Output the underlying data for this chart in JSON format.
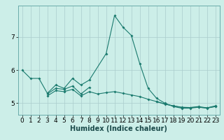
{
  "xlabel": "Humidex (Indice chaleur)",
  "bg_color": "#cceee8",
  "grid_color": "#aacccc",
  "line_color": "#1a7a6e",
  "xlim": [
    -0.5,
    23.5
  ],
  "ylim": [
    4.65,
    7.95
  ],
  "yticks": [
    5,
    6,
    7
  ],
  "xticks": [
    0,
    1,
    2,
    3,
    4,
    5,
    6,
    7,
    8,
    9,
    10,
    11,
    12,
    13,
    14,
    15,
    16,
    17,
    18,
    19,
    20,
    21,
    22,
    23
  ],
  "series": [
    {
      "x": [
        0,
        1,
        2,
        3,
        4,
        5,
        6,
        7,
        8,
        10,
        11,
        12,
        13,
        14,
        15,
        16,
        17,
        18,
        19,
        20,
        21,
        22,
        23
      ],
      "y": [
        6.0,
        5.75,
        5.75,
        5.3,
        5.55,
        5.45,
        5.75,
        5.55,
        5.7,
        6.5,
        7.65,
        7.3,
        7.05,
        6.2,
        5.45,
        5.15,
        5.0,
        4.9,
        4.85,
        4.85,
        4.88,
        4.85,
        4.9
      ]
    },
    {
      "x": [
        3,
        4,
        5,
        6,
        7,
        8
      ],
      "y": [
        5.28,
        5.45,
        5.42,
        5.52,
        5.28,
        5.48
      ]
    },
    {
      "x": [
        3,
        4,
        5,
        6,
        7,
        8,
        9,
        10,
        11,
        12,
        13,
        14,
        15,
        16,
        17,
        18,
        19,
        20,
        21,
        22,
        23
      ],
      "y": [
        5.22,
        5.38,
        5.35,
        5.42,
        5.22,
        5.35,
        5.28,
        5.32,
        5.35,
        5.3,
        5.25,
        5.2,
        5.12,
        5.05,
        4.98,
        4.92,
        4.88,
        4.87,
        4.88,
        4.86,
        4.9
      ]
    },
    {
      "x": [
        16,
        17,
        18,
        19,
        20,
        21,
        22,
        23
      ],
      "y": [
        5.05,
        4.97,
        4.92,
        4.87,
        4.87,
        4.9,
        4.86,
        4.92
      ]
    }
  ]
}
